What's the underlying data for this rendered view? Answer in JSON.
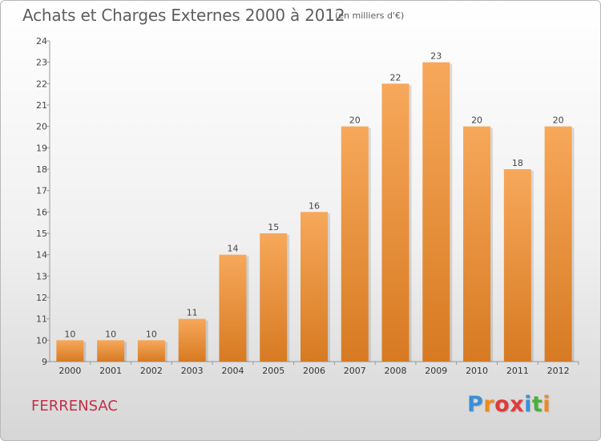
{
  "header": {
    "title": "Achats et Charges Externes 2000 à 2012",
    "subtitle": "(en milliers d'€)"
  },
  "footer": {
    "commune": "FERRENSAC",
    "brand": [
      "P",
      "r",
      "o",
      "x",
      "i",
      "t",
      "i"
    ],
    "brand_colors": [
      "#3a8fd6",
      "#f08a1c",
      "#e03b3b",
      "#e03b3b",
      "#3a8fd6",
      "#4cae3c",
      "#f08a1c"
    ]
  },
  "chart_data": {
    "type": "bar",
    "title": "Achats et Charges Externes 2000 à 2012",
    "subtitle": "(en milliers d'€)",
    "xlabel": "",
    "ylabel": "",
    "categories": [
      "2000",
      "2001",
      "2002",
      "2003",
      "2004",
      "2005",
      "2006",
      "2007",
      "2008",
      "2009",
      "2010",
      "2011",
      "2012"
    ],
    "values": [
      10,
      10,
      10,
      11,
      14,
      15,
      16,
      20,
      22,
      23,
      20,
      18,
      20
    ],
    "ylim": [
      9,
      24
    ],
    "yticks": [
      9,
      10,
      11,
      12,
      13,
      14,
      15,
      16,
      17,
      18,
      19,
      20,
      21,
      22,
      23,
      24
    ],
    "grid": false,
    "bar_color_light": "#f7a85a",
    "bar_color_dark": "#d77a22"
  }
}
